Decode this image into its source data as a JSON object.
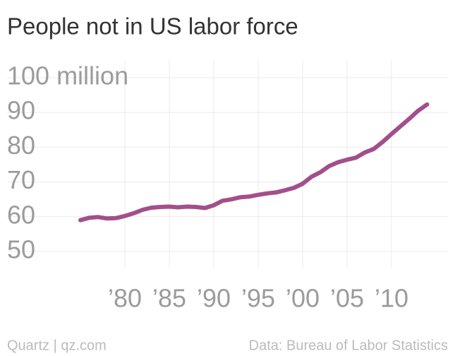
{
  "chart_data": {
    "type": "line",
    "title": "People not in US labor force",
    "x": [
      1975,
      1976,
      1977,
      1978,
      1979,
      1980,
      1981,
      1982,
      1983,
      1984,
      1985,
      1986,
      1987,
      1988,
      1989,
      1990,
      1991,
      1992,
      1993,
      1994,
      1995,
      1996,
      1997,
      1998,
      1999,
      2000,
      2001,
      2002,
      2003,
      2004,
      2005,
      2006,
      2007,
      2008,
      2009,
      2010,
      2011,
      2012,
      2013,
      2014
    ],
    "series": [
      {
        "color": "#a24f8b",
        "values": [
          59.0,
          59.7,
          59.9,
          59.5,
          59.6,
          60.2,
          61.0,
          62.0,
          62.6,
          62.8,
          62.9,
          62.7,
          62.9,
          62.8,
          62.5,
          63.3,
          64.6,
          65.0,
          65.6,
          65.8,
          66.3,
          66.7,
          67.0,
          67.6,
          68.3,
          69.5,
          71.5,
          72.8,
          74.6,
          75.7,
          76.4,
          77.0,
          78.5,
          79.5,
          81.5,
          83.8,
          86.0,
          88.2,
          90.5,
          92.3
        ]
      }
    ],
    "xlim": [
      1975,
      2015
    ],
    "xticks": [
      {
        "value": 1980,
        "label": "’80"
      },
      {
        "value": 1985,
        "label": "’85"
      },
      {
        "value": 1990,
        "label": "’90"
      },
      {
        "value": 1995,
        "label": "’95"
      },
      {
        "value": 2000,
        "label": "’00"
      },
      {
        "value": 2005,
        "label": "’05"
      },
      {
        "value": 2010,
        "label": "’10"
      }
    ],
    "ylim": [
      50,
      100
    ],
    "yticks": [
      50,
      60,
      70,
      80,
      90,
      {
        "value": 100,
        "label": "100 million"
      }
    ],
    "grid": true,
    "source_left": "Quartz | qz.com",
    "source_right": "Data: Bureau of Labor Statistics"
  }
}
